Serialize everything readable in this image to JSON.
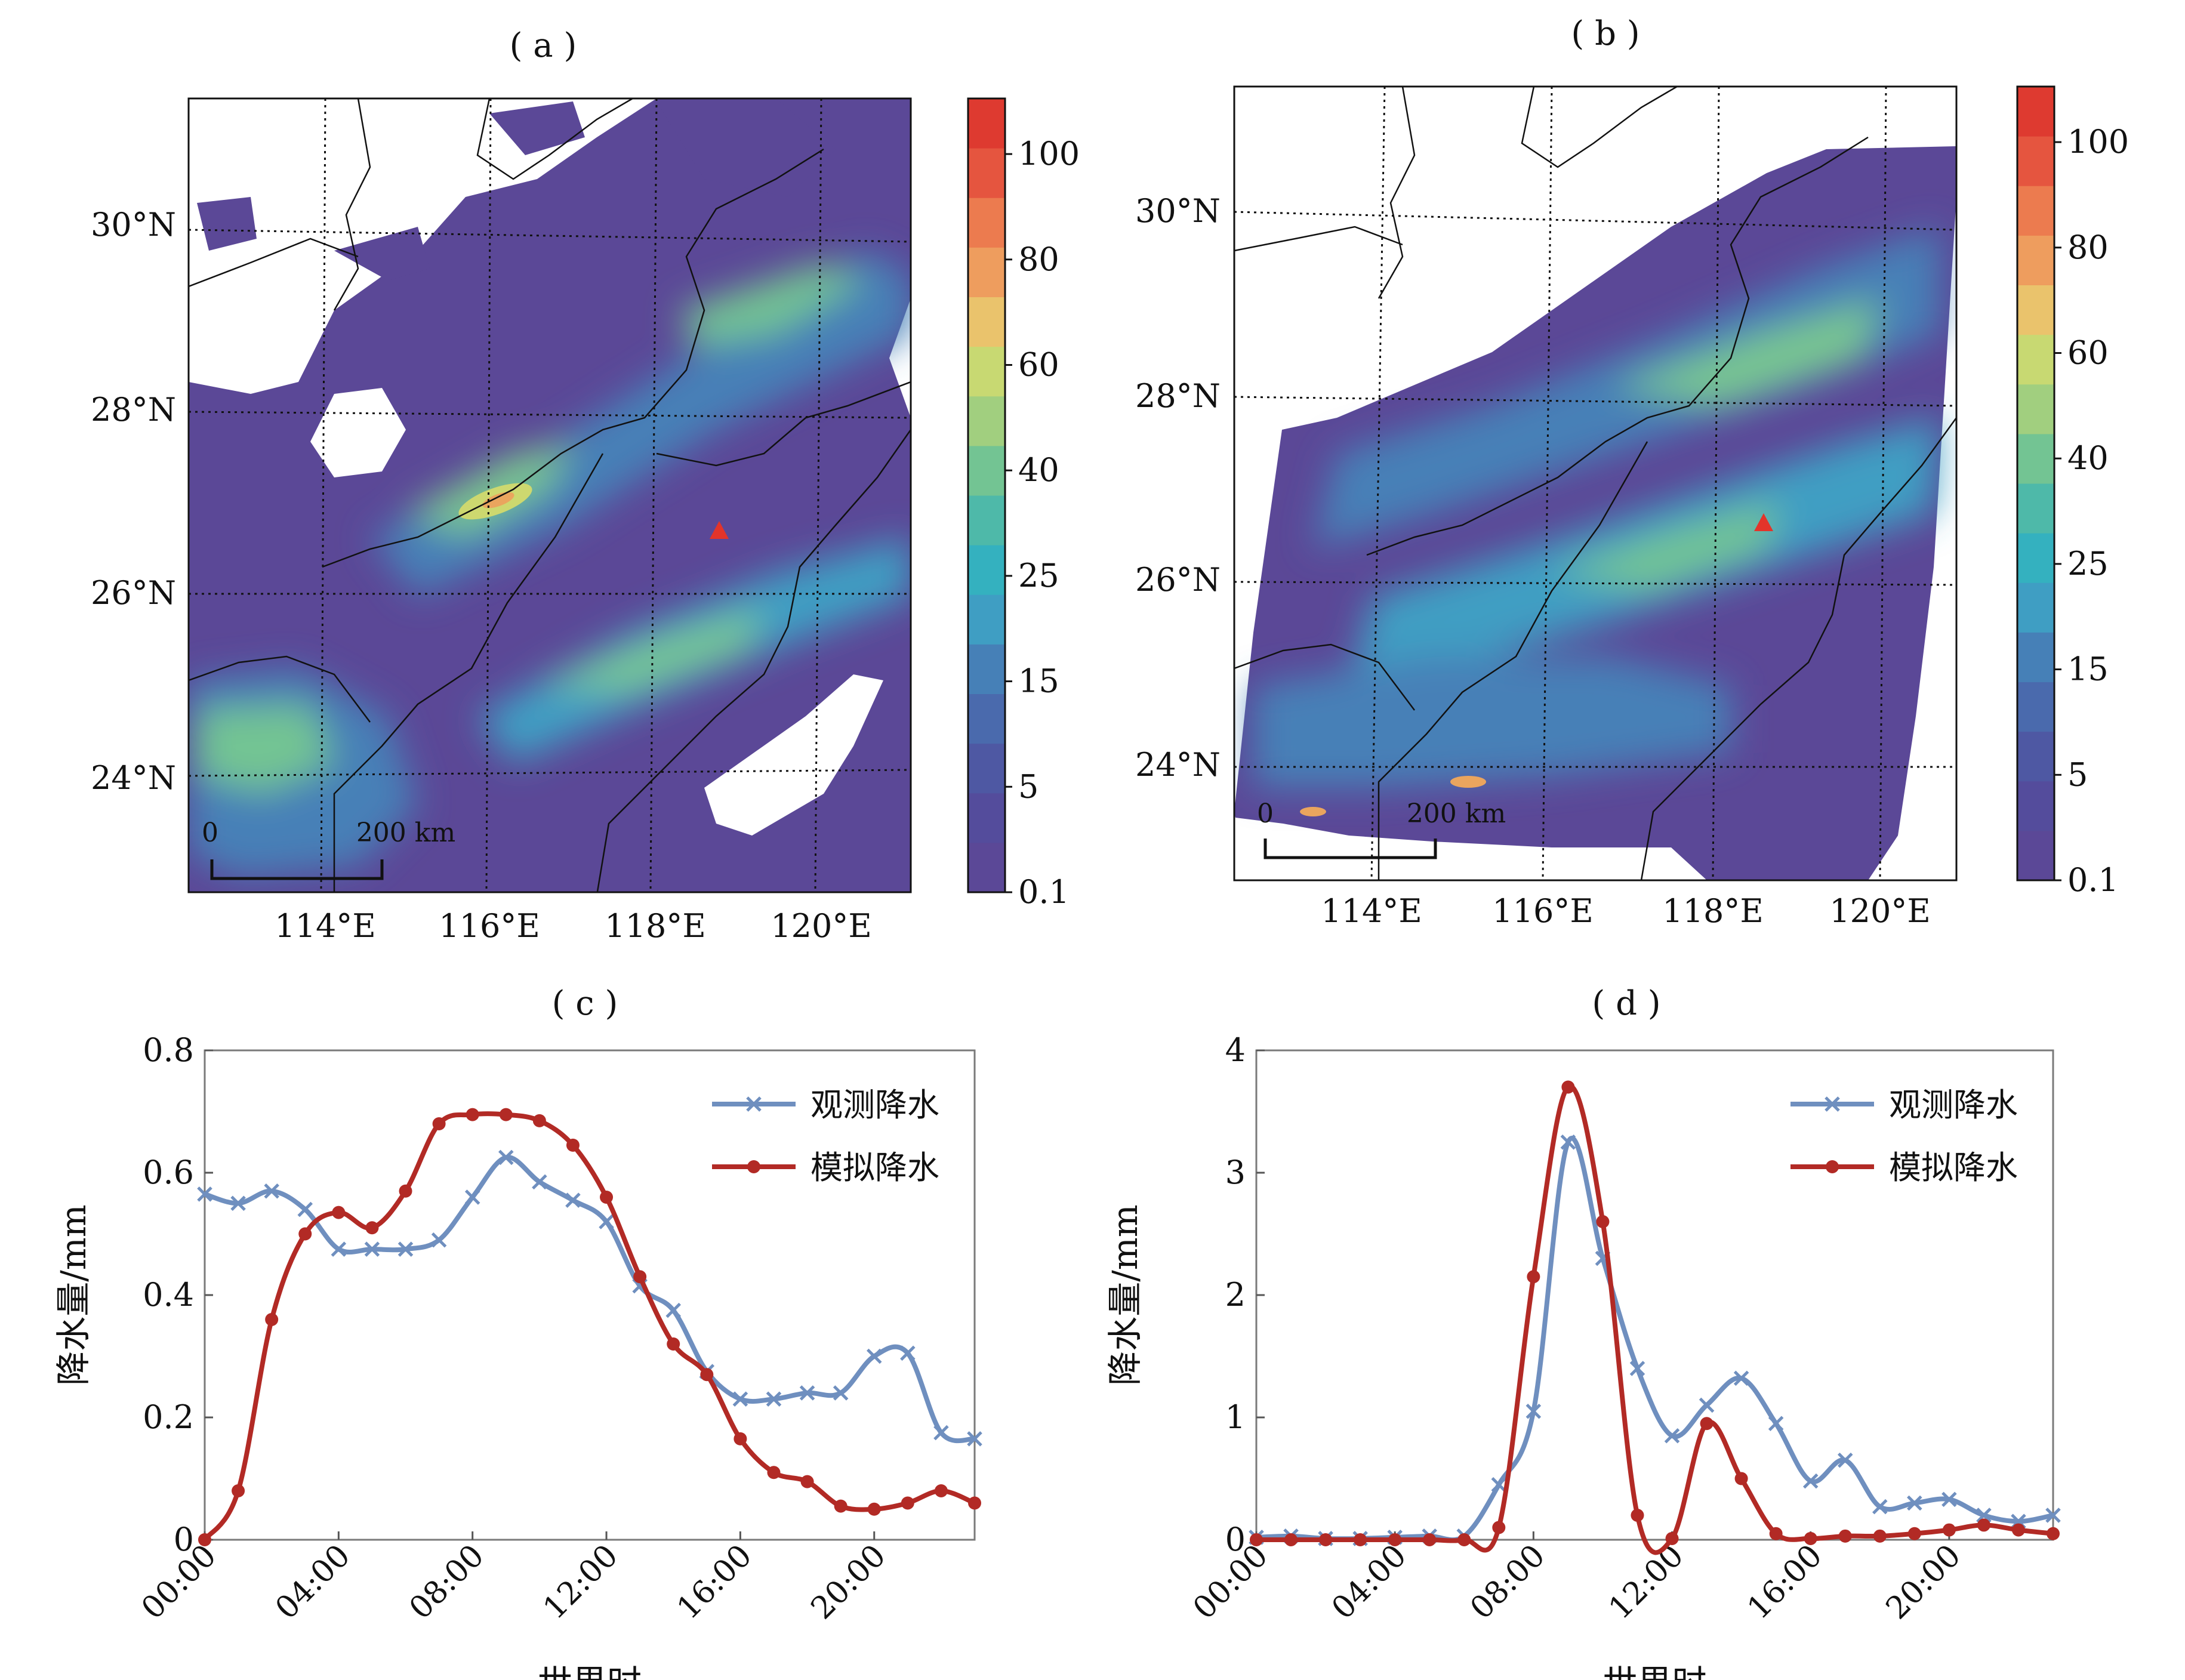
{
  "panels": {
    "a": {
      "label": "( a )",
      "scale": {
        "zero": "0",
        "dist": "200 km"
      },
      "lon_labels": [
        "114°E",
        "116°E",
        "118°E",
        "120°E"
      ],
      "lat_labels": [
        "30°N",
        "28°N",
        "26°N",
        "24°N"
      ],
      "colorbar": {
        "ticks": [
          "100",
          "80",
          "60",
          "40",
          "25",
          "15",
          "5",
          "0.1"
        ]
      }
    },
    "b": {
      "label": "( b )",
      "scale": {
        "zero": "0",
        "dist": "200 km"
      },
      "lon_labels": [
        "114°E",
        "116°E",
        "118°E",
        "120°E"
      ],
      "lat_labels": [
        "30°N",
        "28°N",
        "26°N",
        "24°N"
      ],
      "colorbar": {
        "ticks": [
          "100",
          "80",
          "60",
          "40",
          "25",
          "15",
          "5",
          "0.1"
        ]
      }
    },
    "c": {
      "label": "( c )"
    },
    "d": {
      "label": "( d )"
    }
  },
  "colors": {
    "observed": "#6f8fbf",
    "simulated": "#b22a25",
    "marker": "#e3342a",
    "colorbar": [
      "#5b4897",
      "#544c9c",
      "#4e58a3",
      "#4a6aad",
      "#4680b7",
      "#3f9ec3",
      "#34b1bf",
      "#4eb9a9",
      "#73c493",
      "#a1cf7f",
      "#c8d972",
      "#eac36c",
      "#ee9d5e",
      "#ec7b4f",
      "#e5553f",
      "#de3a30"
    ],
    "land_states": [
      "#5b4897",
      "#4a6aad",
      "#3aa7c3",
      "#79c690",
      "#cdd86f",
      "#eaa55e",
      "#e04b34"
    ]
  },
  "chart_data": [
    {
      "type": "line",
      "panel": "c",
      "title": "( c )",
      "xlabel": "世界时",
      "ylabel": "降水量/mm",
      "ylim": [
        0,
        0.8
      ],
      "yticks": [
        "0",
        "0.2",
        "0.4",
        "0.6",
        "0.8"
      ],
      "xlim": [
        0,
        23
      ],
      "xticks": [
        0,
        4,
        8,
        12,
        16,
        20
      ],
      "xtick_labels": [
        "00:00",
        "04:00",
        "08:00",
        "12:00",
        "16:00",
        "20:00"
      ],
      "x": [
        0,
        1,
        2,
        3,
        4,
        5,
        6,
        7,
        8,
        9,
        10,
        11,
        12,
        13,
        14,
        15,
        16,
        17,
        18,
        19,
        20,
        21,
        22,
        23
      ],
      "series": [
        {
          "name": "观测降水",
          "marker": "x",
          "values": [
            0.565,
            0.55,
            0.57,
            0.54,
            0.475,
            0.475,
            0.475,
            0.49,
            0.56,
            0.625,
            0.585,
            0.555,
            0.52,
            0.415,
            0.375,
            0.275,
            0.23,
            0.23,
            0.24,
            0.24,
            0.3,
            0.305,
            0.175,
            0.165
          ]
        },
        {
          "name": "模拟降水",
          "marker": "o",
          "values": [
            0.0,
            0.08,
            0.36,
            0.5,
            0.535,
            0.51,
            0.57,
            0.68,
            0.695,
            0.695,
            0.685,
            0.645,
            0.56,
            0.43,
            0.32,
            0.27,
            0.165,
            0.11,
            0.095,
            0.055,
            0.05,
            0.06,
            0.08,
            0.06
          ]
        }
      ],
      "legend": "top-right"
    },
    {
      "type": "line",
      "panel": "d",
      "title": "( d )",
      "xlabel": "世界时",
      "ylabel": "降水量/mm",
      "ylim": [
        0,
        4
      ],
      "yticks": [
        "0",
        "1",
        "2",
        "3",
        "4"
      ],
      "xlim": [
        0,
        23
      ],
      "xticks": [
        0,
        4,
        8,
        12,
        16,
        20
      ],
      "xtick_labels": [
        "00:00",
        "04:00",
        "08:00",
        "12:00",
        "16:00",
        "20:00"
      ],
      "x": [
        0,
        1,
        2,
        3,
        4,
        5,
        6,
        7,
        8,
        9,
        10,
        11,
        12,
        13,
        14,
        15,
        16,
        17,
        18,
        19,
        20,
        21,
        22,
        23
      ],
      "series": [
        {
          "name": "观测降水",
          "marker": "x",
          "values": [
            0.02,
            0.03,
            0.01,
            0.01,
            0.02,
            0.03,
            0.03,
            0.45,
            1.05,
            3.25,
            2.3,
            1.4,
            0.85,
            1.1,
            1.32,
            0.95,
            0.48,
            0.65,
            0.27,
            0.3,
            0.33,
            0.2,
            0.15,
            0.2
          ]
        },
        {
          "name": "模拟降水",
          "marker": "o",
          "values": [
            0.0,
            0.0,
            0.0,
            0.0,
            0.0,
            0.0,
            0.0,
            0.1,
            2.15,
            3.7,
            2.6,
            0.2,
            0.01,
            0.95,
            0.5,
            0.05,
            0.01,
            0.03,
            0.03,
            0.05,
            0.08,
            0.12,
            0.08,
            0.05
          ]
        }
      ],
      "legend": "top-right"
    }
  ]
}
